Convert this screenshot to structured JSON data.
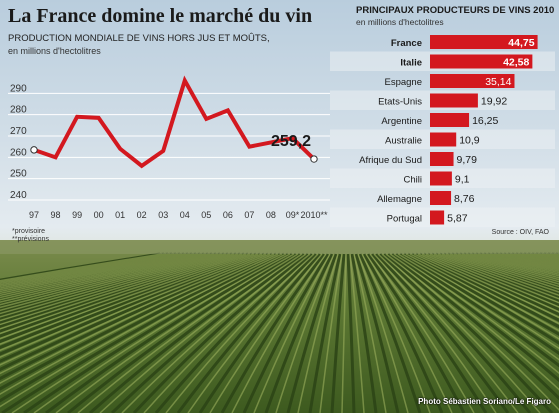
{
  "header": {
    "title": "La France domine le marché du vin",
    "subtitle": "PRODUCTION MONDIALE DE VINS HORS JUS ET MOÛTS,",
    "units": "en millions d'hectolitres",
    "notes": [
      "*provisoire",
      "**prévisions"
    ]
  },
  "ranking": {
    "title": "PRINCIPAUX PRODUCTEURS DE VINS 2010",
    "units": "en millions d'hectolitres",
    "source": "Source : OIV, FAO"
  },
  "credit": "Photo Sébastien Soriano/Le Figaro",
  "colors": {
    "accent": "#d3181f",
    "gridline": "#ffffff",
    "text": "#1a1a1a"
  },
  "chart_data": [
    {
      "type": "line",
      "x": [
        "97",
        "98",
        "99",
        "00",
        "01",
        "02",
        "03",
        "04",
        "05",
        "06",
        "07",
        "08",
        "09*",
        "2010**"
      ],
      "values": [
        263.5,
        260,
        279,
        278.5,
        264,
        256,
        263,
        296,
        278,
        282,
        265,
        267,
        269,
        259.2
      ],
      "ylim": [
        240,
        300
      ],
      "yticks": [
        240,
        250,
        260,
        270,
        280,
        290
      ],
      "last_label": "259,2",
      "grid": true
    },
    {
      "type": "bar",
      "orientation": "horizontal",
      "categories": [
        "France",
        "Italie",
        "Espagne",
        "Etats-Unis",
        "Argentine",
        "Australie",
        "Afrique du Sud",
        "Chili",
        "Allemagne",
        "Portugal"
      ],
      "values": [
        44.75,
        42.58,
        35.14,
        19.92,
        16.25,
        10.9,
        9.79,
        9.1,
        8.76,
        5.87
      ],
      "value_labels": [
        "44,75",
        "42,58",
        "35,14",
        "19,92",
        "16,25",
        "10,9",
        "9,79",
        "9,1",
        "8,76",
        "5,87"
      ],
      "highlight": [
        true,
        true,
        false,
        false,
        false,
        false,
        false,
        false,
        false,
        false
      ],
      "xlim": [
        0,
        47
      ]
    }
  ]
}
